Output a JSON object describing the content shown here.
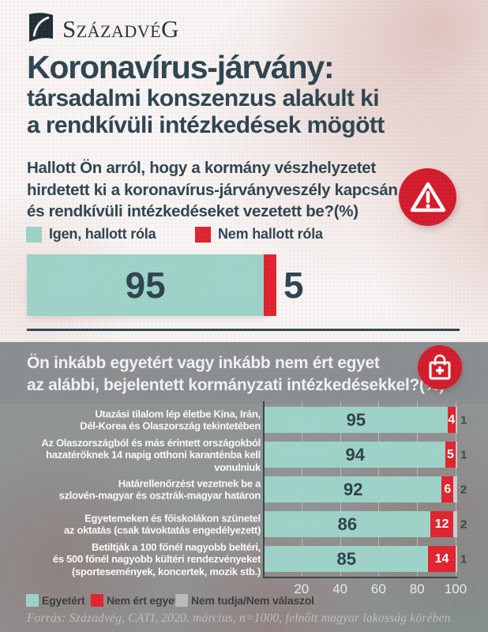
{
  "colors": {
    "teal": "#9dd3c8",
    "red": "#e0232f",
    "dark": "#2d4450",
    "gray_swatch": "#b9bcbe",
    "dk_seg": "#cbcecd",
    "icon_red": "#d31b2c"
  },
  "brand": {
    "logo_text": "SzázadvéG"
  },
  "title": {
    "line1": "Koronavírus-járvány:",
    "line2": "társadalmi konszenzus alakult ki",
    "line3": "a rendkívüli intézkedések mögött"
  },
  "q1": {
    "question": "Hallott Ön arról, hogy  a kormány vészhelyzetet\nhirdetett ki a koronavírus-járványveszély kapcsán\nés rendkívüli intézkedéseket vezetett be?(%)",
    "icon": "warning-triangle-icon",
    "segments": [
      {
        "label": "Igen, hallott róla",
        "value": 95,
        "color_key": "teal"
      },
      {
        "label": "Nem hallott róla",
        "value": 5,
        "color_key": "red"
      }
    ]
  },
  "q2": {
    "question": "Ön inkább egyetért vagy inkább nem ért egyet\naz alábbi, bejelentett kormányzati intézkedésekkel?(%)",
    "icon": "medical-bag-icon",
    "axis_ticks": [
      20,
      40,
      60,
      80,
      100
    ],
    "rows": [
      {
        "label": "Utazási tilalom lép életbe Kína, Irán,\nDél-Korea és Olaszország tekintetében",
        "agree": 95,
        "disagree": 4,
        "dk": 1
      },
      {
        "label": "Az Olaszországból és más érintett országokból\nhazatérőknek 14 napig otthoni karanténba kell vonulniuk",
        "agree": 94,
        "disagree": 5,
        "dk": 1
      },
      {
        "label": "Határellenőrzést vezetnek be a\nszlovén-magyar és osztrák-magyar határon",
        "agree": 92,
        "disagree": 6,
        "dk": 2
      },
      {
        "label": "Egyetemeken és főiskolákon szünetel\naz oktatás (csak távoktatás engedélyezett)",
        "agree": 86,
        "disagree": 12,
        "dk": 2
      },
      {
        "label": "Betiltják a 100 főnél nagyobb beltéri,\nés 500 főnél nagyobb kültéri rendezvényeket\n(sportesemények, koncertek, mozik stb.)",
        "agree": 85,
        "disagree": 14,
        "dk": 1
      }
    ],
    "legend": [
      {
        "label": "Egyetért",
        "color_key": "teal"
      },
      {
        "label": "Nem ért egyet",
        "color_key": "red"
      },
      {
        "label": "Nem tudja/Nem válaszol",
        "color_key": "gray_swatch"
      }
    ]
  },
  "source": "Forrás: Századvég, CATI, 2020. március, n=1000, felnőtt magyar lakosság körében",
  "chart_data": [
    {
      "type": "bar",
      "title": "Hallott Ön arról, hogy  a kormány vészhelyzetet hirdetett ki a koronavírus-járványveszély kapcsán és rendkívüli intézkedéseket vezetett be?(%)",
      "categories": [
        "Válaszok"
      ],
      "series": [
        {
          "name": "Igen, hallott róla",
          "values": [
            95
          ]
        },
        {
          "name": "Nem hallott róla",
          "values": [
            5
          ]
        }
      ],
      "orientation": "horizontal-stacked",
      "xlim": [
        0,
        100
      ],
      "legend_position": "top",
      "grid": false
    },
    {
      "type": "bar",
      "title": "Ön inkább egyetért vagy inkább nem ért egyet az alábbi, bejelentett kormányzati intézkedésekkel?(%)",
      "categories": [
        "Utazási tilalom lép életbe Kína, Irán, Dél-Korea és Olaszország tekintetében",
        "Az Olaszországból és más érintett országokból hazatérőknek 14 napig otthoni karanténba kell vonulniuk",
        "Határellenőrzést vezetnek be a szlovén-magyar és osztrák-magyar határon",
        "Egyetemeken és főiskolákon szünetel az oktatás (csak távoktatás engedélyezett)",
        "Betiltják a 100 főnél nagyobb beltéri, és 500 főnél nagyobb kültéri rendezvényeket (sportesemények, koncertek, mozik stb.)"
      ],
      "series": [
        {
          "name": "Egyetért",
          "values": [
            95,
            94,
            92,
            86,
            85
          ]
        },
        {
          "name": "Nem ért egyet",
          "values": [
            4,
            5,
            6,
            12,
            14
          ]
        },
        {
          "name": "Nem tudja/Nem válaszol",
          "values": [
            1,
            1,
            2,
            2,
            1
          ]
        }
      ],
      "orientation": "horizontal-stacked",
      "xlim": [
        0,
        100
      ],
      "x_ticks": [
        20,
        40,
        60,
        80,
        100
      ],
      "legend_position": "bottom",
      "grid": true
    }
  ]
}
